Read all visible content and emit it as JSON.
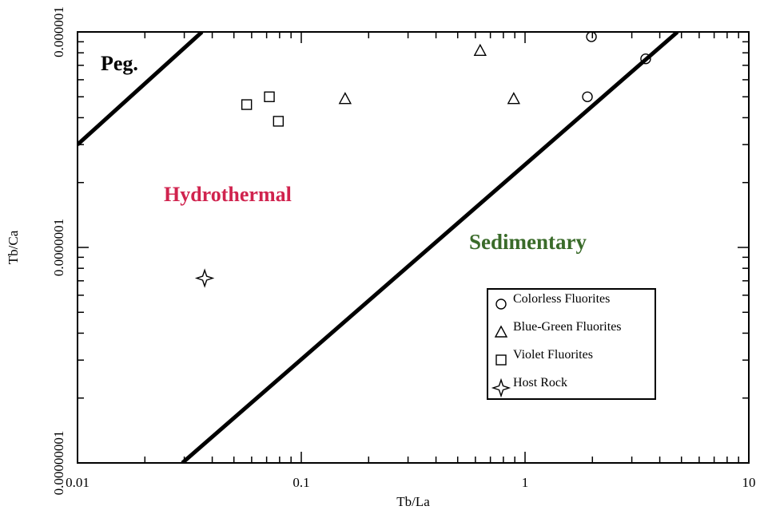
{
  "chart_data": {
    "type": "scatter",
    "x_label": "Tb/La",
    "y_label": "Tb/Ca",
    "log_x": true,
    "log_y": true,
    "xlim": [
      0.01,
      10
    ],
    "ylim": [
      1e-08,
      1e-06
    ],
    "xticks": [
      0.01,
      0.1,
      1,
      10
    ],
    "yticks": [
      {
        "value": 1e-08,
        "label": "0.00000001"
      },
      {
        "value": 1e-07,
        "label": "0.0000001"
      },
      1e-06
    ],
    "legend_position": "lower right",
    "series": [
      {
        "name": "Colorless Fluorites",
        "marker": "circle",
        "color": "#000000",
        "x": [
          1.98,
          3.46,
          1.9
        ],
        "values": [
          9.5e-07,
          7.5e-07,
          5e-07
        ]
      },
      {
        "name": "Blue-Green Fluorites",
        "marker": "triangle",
        "color": "#000000",
        "x": [
          0.63,
          0.157,
          0.89
        ],
        "values": [
          8.2e-07,
          4.9e-07,
          4.9e-07
        ]
      },
      {
        "name": "Violet Fluorites",
        "marker": "square",
        "color": "#000000",
        "x": [
          0.057,
          0.072,
          0.079
        ],
        "values": [
          4.6e-07,
          5e-07,
          3.85e-07
        ]
      },
      {
        "name": "Host Rock",
        "marker": "star",
        "color": "#000000",
        "x": [
          0.037
        ],
        "values": [
          7.2e-08
        ]
      }
    ],
    "boundaries": [
      {
        "x": [
          0.01,
          0.036
        ],
        "values": [
          3e-07,
          1e-06
        ]
      },
      {
        "x": [
          0.0294,
          4.8
        ],
        "values": [
          1e-08,
          1e-06
        ]
      }
    ],
    "annotations": [
      {
        "text": "Peg.",
        "color": "#000000"
      },
      {
        "text": "Hydrothermal",
        "color": "#d0234e"
      },
      {
        "text": "Sedimentary",
        "color": "#3a6b2a"
      }
    ]
  }
}
